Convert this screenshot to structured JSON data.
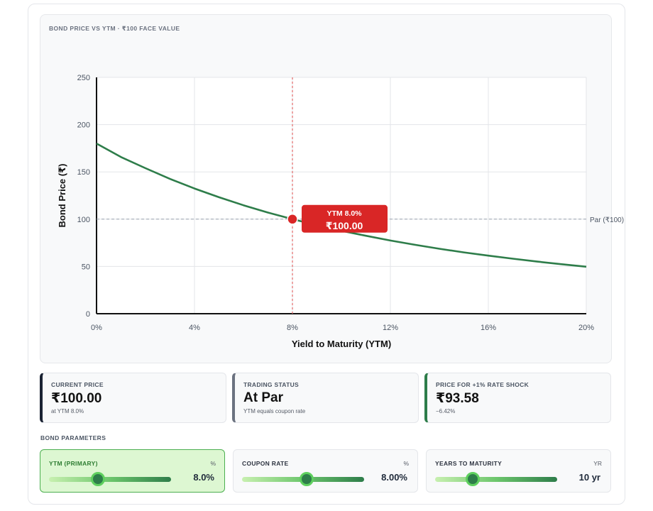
{
  "chart_data": {
    "type": "line",
    "title": "BOND PRICE VS YTM · ₹100 FACE VALUE",
    "xlabel": "Yield to Maturity (YTM)",
    "ylabel": "Bond Price (₹)",
    "xlim": [
      0,
      20
    ],
    "ylim": [
      0,
      250
    ],
    "x_ticks": [
      0,
      4,
      8,
      12,
      16,
      20
    ],
    "x_tick_labels": [
      "0%",
      "4%",
      "8%",
      "12%",
      "16%",
      "20%"
    ],
    "y_ticks": [
      0,
      50,
      100,
      150,
      200,
      250
    ],
    "y_tick_labels": [
      "0",
      "50",
      "100",
      "150",
      "200",
      "250"
    ],
    "grid": true,
    "series": [
      {
        "name": "Bond Price",
        "color": "#2e7d4a",
        "x": [
          0,
          1,
          2,
          3,
          4,
          5,
          6,
          7,
          8,
          9,
          10,
          11,
          12,
          13,
          14,
          15,
          16,
          17,
          18,
          19,
          20
        ],
        "values": [
          180.0,
          165.7,
          153.9,
          142.6,
          132.4,
          123.2,
          114.7,
          107.0,
          100.0,
          93.6,
          87.7,
          82.4,
          77.4,
          72.9,
          68.7,
          64.9,
          61.4,
          58.2,
          55.1,
          52.3,
          49.7
        ]
      }
    ],
    "reference_line": {
      "y": 100,
      "label": "Par (₹100)",
      "color": "#9ca3af"
    },
    "marker": {
      "x": 8,
      "y": 100,
      "color": "#d92626",
      "label_line1": "YTM 8.0%",
      "label_line2": "₹100.00"
    }
  },
  "metrics": [
    {
      "label": "CURRENT PRICE",
      "value": "₹100.00",
      "sub": "at YTM 8.0%",
      "accent": "#1a2233"
    },
    {
      "label": "TRADING STATUS",
      "value": "At Par",
      "sub": "YTM equals coupon rate",
      "accent": "#6b7280"
    },
    {
      "label": "PRICE FOR +1% RATE SHOCK",
      "value": "₹93.58",
      "sub": "−6.42%",
      "accent": "#2e7d4a"
    }
  ],
  "params_title": "BOND PARAMETERS",
  "params": [
    {
      "label": "YTM (PRIMARY)",
      "unit": "%",
      "value": "8.0%",
      "fraction": 0.4
    },
    {
      "label": "COUPON RATE",
      "unit": "%",
      "value": "8.00%",
      "fraction": 0.53
    },
    {
      "label": "YEARS TO MATURITY",
      "unit": "YR",
      "value": "10 yr",
      "fraction": 0.31
    }
  ],
  "colors": {
    "accent_green": "#2e7d4a",
    "marker_red": "#d92626",
    "primary_bg": "#ddf7d2"
  }
}
